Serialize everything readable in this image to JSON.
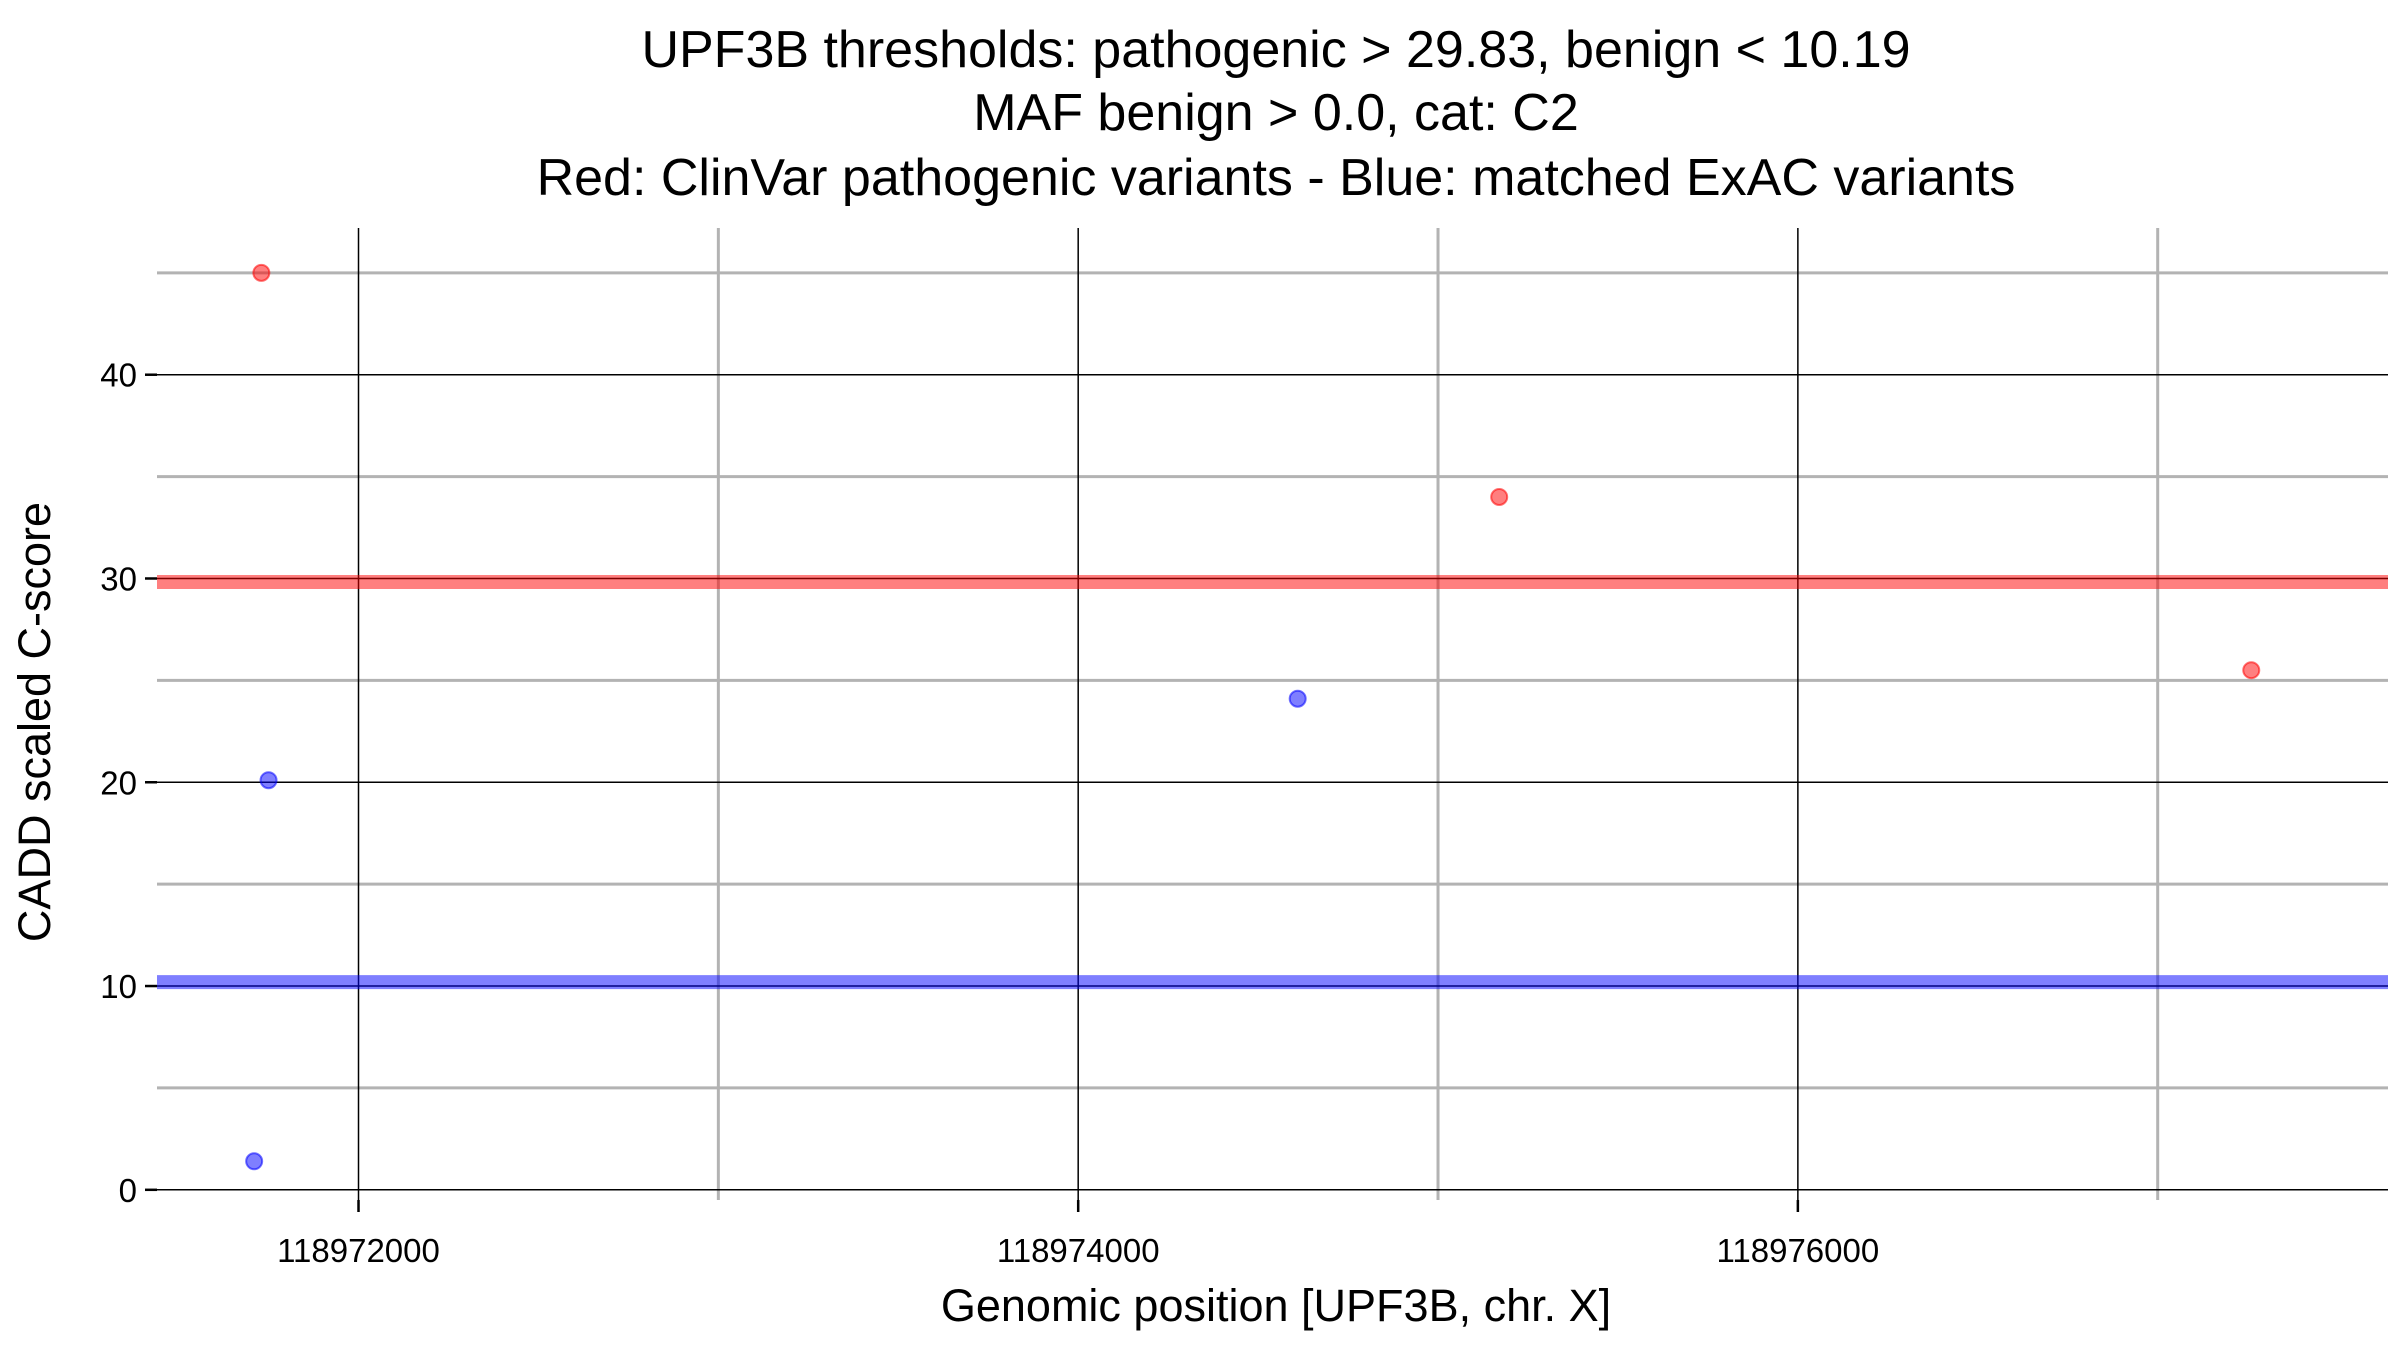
{
  "chart_data": {
    "type": "scatter",
    "title_lines": [
      "UPF3B thresholds: pathogenic > 29.83, benign < 10.19",
      "MAF benign > 0.0, cat: C2",
      "Red: ClinVar pathogenic variants - Blue: matched ExAC variants"
    ],
    "xlabel": "Genomic position [UPF3B, chr. X]",
    "ylabel": "CADD scaled C-score",
    "xlim": [
      118971440,
      118977640
    ],
    "ylim": [
      -0.5,
      47.2
    ],
    "x_ticks": [
      118972000,
      118974000,
      118976000
    ],
    "x_tick_labels": [
      "118972000",
      "118974000",
      "118976000"
    ],
    "x_minor_ticks": [
      118973000,
      118975000,
      118977000
    ],
    "y_ticks": [
      0,
      10,
      20,
      30,
      40
    ],
    "y_tick_labels": [
      "0",
      "10",
      "20",
      "30",
      "40"
    ],
    "y_minor_ticks": [
      5,
      15,
      25,
      35,
      45
    ],
    "grid": true,
    "thresholds": [
      {
        "name": "pathogenic",
        "value": 29.83,
        "color": "#ff0000"
      },
      {
        "name": "benign",
        "value": 10.19,
        "color": "#0000ff"
      }
    ],
    "series": [
      {
        "color": "#ff0000",
        "points": [
          {
            "x": 118971730,
            "y": 45.0
          },
          {
            "x": 118975170,
            "y": 34.0
          },
          {
            "x": 118977260,
            "y": 25.5
          }
        ]
      },
      {
        "color": "#0000ff",
        "points": [
          {
            "x": 118971710,
            "y": 1.4
          },
          {
            "x": 118971750,
            "y": 20.1
          },
          {
            "x": 118974610,
            "y": 24.1
          }
        ]
      }
    ]
  }
}
